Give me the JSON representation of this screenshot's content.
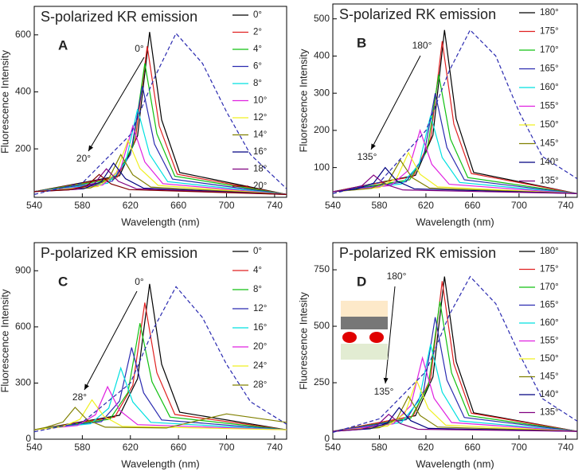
{
  "chart_data": [
    {
      "type": "line",
      "title": "S-polarized KR emission",
      "label": "A",
      "x_label": "Wavelength (nm)",
      "y_label": "Fluorescence Intensity",
      "xlim": [
        540,
        750
      ],
      "xticks": [
        540,
        580,
        620,
        660,
        700,
        740
      ],
      "ylim": [
        30,
        700
      ],
      "yticks": [
        200,
        400,
        600
      ],
      "annotations": [
        "0°",
        "20°"
      ],
      "series": [
        {
          "name": "0°",
          "color": "#000000",
          "x": [
            540,
            611,
            626,
            636,
            646,
            661,
            750
          ],
          "values": [
            50,
            106,
            246,
            610,
            302,
            117,
            40
          ]
        },
        {
          "name": "2°",
          "color": "#e02020",
          "x": [
            540,
            609,
            624,
            634,
            644,
            659,
            750
          ],
          "values": [
            50,
            101,
            229,
            560,
            280,
            111,
            40
          ]
        },
        {
          "name": "4°",
          "color": "#10c010",
          "x": [
            540,
            607,
            622,
            632,
            642,
            657,
            750
          ],
          "values": [
            50,
            95,
            208,
            500,
            253,
            104,
            40
          ]
        },
        {
          "name": "6°",
          "color": "#2a2ab0",
          "x": [
            540,
            605,
            620,
            630,
            640,
            655,
            750
          ],
          "values": [
            50,
            87,
            180,
            420,
            217,
            94,
            40
          ]
        },
        {
          "name": "8°",
          "color": "#00e0e0",
          "x": [
            540,
            601,
            616,
            626,
            636,
            651,
            750
          ],
          "values": [
            50,
            79,
            152,
            340,
            181,
            85,
            40
          ]
        },
        {
          "name": "10°",
          "color": "#e020e0",
          "x": [
            540,
            597,
            612,
            622,
            632,
            647,
            750
          ],
          "values": [
            50,
            73,
            131,
            280,
            154,
            78,
            40
          ]
        },
        {
          "name": "12°",
          "color": "#f0f020",
          "x": [
            540,
            593,
            608,
            618,
            628,
            643,
            750
          ],
          "values": [
            50,
            68,
            113,
            230,
            131,
            72,
            40
          ]
        },
        {
          "name": "14°",
          "color": "#808000",
          "x": [
            540,
            587,
            602,
            612,
            622,
            637,
            750
          ],
          "values": [
            50,
            63,
            96,
            180,
            109,
            66,
            40
          ]
        },
        {
          "name": "16°",
          "color": "#000080",
          "x": [
            540,
            581,
            596,
            606,
            616,
            631,
            750
          ],
          "values": [
            50,
            60,
            85,
            150,
            95,
            62,
            40
          ]
        },
        {
          "name": "18°",
          "color": "#800080",
          "x": [
            540,
            575,
            590,
            600,
            610,
            625,
            750
          ],
          "values": [
            50,
            58,
            78,
            130,
            86,
            60,
            40
          ]
        },
        {
          "name": "20°",
          "color": "#800000",
          "x": [
            540,
            569,
            584,
            594,
            604,
            619,
            750
          ],
          "values": [
            50,
            56,
            71,
            110,
            77,
            57,
            40
          ]
        },
        {
          "color": "#2a2ab0",
          "dashed": true,
          "x": [
            540,
            580,
            620,
            640,
            658,
            680,
            700,
            720,
            750
          ],
          "values": [
            40,
            80,
            250,
            450,
            605,
            500,
            330,
            180,
            60
          ]
        }
      ]
    },
    {
      "type": "line",
      "title": "S-polarized RK emission",
      "label": "B",
      "x_label": "Wavelength (nm)",
      "y_label": "Fluorescence Intensity",
      "xlim": [
        540,
        750
      ],
      "xticks": [
        540,
        580,
        620,
        660,
        700,
        740
      ],
      "ylim": [
        20,
        540
      ],
      "yticks": [
        100,
        200,
        300,
        400,
        500
      ],
      "annotations": [
        "180°",
        "135°"
      ],
      "series": [
        {
          "name": "180°",
          "color": "#000000",
          "x": [
            540,
            611,
            626,
            636,
            646,
            661,
            750
          ],
          "values": [
            35,
            79,
            187,
            470,
            231,
            87,
            30
          ]
        },
        {
          "name": "175°",
          "color": "#e02020",
          "x": [
            540,
            609,
            624,
            634,
            644,
            659,
            750
          ],
          "values": [
            35,
            76,
            177,
            440,
            217,
            84,
            30
          ]
        },
        {
          "name": "170°",
          "color": "#10c010",
          "x": [
            540,
            606,
            621,
            631,
            641,
            656,
            750
          ],
          "values": [
            35,
            67,
            145,
            350,
            177,
            73,
            30
          ]
        },
        {
          "name": "165°",
          "color": "#2a2ab0",
          "x": [
            540,
            603,
            618,
            628,
            638,
            653,
            750
          ],
          "values": [
            35,
            62,
            128,
            300,
            154,
            67,
            30
          ]
        },
        {
          "name": "160°",
          "color": "#00e0e0",
          "x": [
            540,
            599,
            614,
            624,
            634,
            649,
            750
          ],
          "values": [
            35,
            56,
            107,
            240,
            127,
            60,
            30
          ]
        },
        {
          "name": "155°",
          "color": "#e020e0",
          "x": [
            540,
            590,
            605,
            615,
            625,
            640,
            750
          ],
          "values": [
            35,
            52,
            93,
            200,
            109,
            55,
            30
          ]
        },
        {
          "name": "150°",
          "color": "#f0f020",
          "x": [
            540,
            580,
            595,
            605,
            615,
            630,
            750
          ],
          "values": [
            35,
            46,
            72,
            140,
            82,
            48,
            30
          ]
        },
        {
          "name": "145°",
          "color": "#808000",
          "x": [
            540,
            573,
            588,
            598,
            608,
            623,
            750
          ],
          "values": [
            35,
            44,
            65,
            120,
            73,
            45,
            30
          ]
        },
        {
          "name": "140°",
          "color": "#000080",
          "x": [
            540,
            560,
            575,
            585,
            595,
            610,
            750
          ],
          "values": [
            35,
            42,
            58,
            100,
            64,
            43,
            30
          ]
        },
        {
          "name": "135°",
          "color": "#800080",
          "x": [
            540,
            550,
            565,
            575,
            585,
            600,
            750
          ],
          "values": [
            35,
            40,
            51,
            80,
            55,
            40,
            30
          ]
        },
        {
          "color": "#2a2ab0",
          "dashed": true,
          "x": [
            540,
            580,
            620,
            640,
            658,
            680,
            700,
            720,
            750
          ],
          "values": [
            30,
            60,
            200,
            360,
            470,
            400,
            250,
            130,
            70
          ]
        }
      ]
    },
    {
      "type": "line",
      "title": "P-polarized KR emission",
      "label": "C",
      "x_label": "Wavelength (nm)",
      "y_label": "Fluorescence Intensity",
      "xlim": [
        540,
        750
      ],
      "xticks": [
        540,
        580,
        620,
        660,
        700,
        740
      ],
      "ylim": [
        0,
        1050
      ],
      "yticks": [
        0,
        300,
        600,
        900
      ],
      "annotations": [
        "0°",
        "28°"
      ],
      "series": [
        {
          "name": "0°",
          "color": "#000000",
          "x": [
            540,
            611,
            626,
            636,
            646,
            661,
            750
          ],
          "values": [
            50,
            128,
            323,
            830,
            401,
            144,
            50
          ]
        },
        {
          "name": "4°",
          "color": "#e02020",
          "x": [
            540,
            607,
            622,
            632,
            642,
            657,
            750
          ],
          "values": [
            50,
            118,
            288,
            730,
            356,
            132,
            50
          ]
        },
        {
          "name": "8°",
          "color": "#10c010",
          "x": [
            540,
            603,
            618,
            628,
            638,
            653,
            750
          ],
          "values": [
            50,
            107,
            250,
            620,
            307,
            118,
            50
          ]
        },
        {
          "name": "12°",
          "color": "#2a2ab0",
          "x": [
            540,
            596,
            611,
            621,
            631,
            646,
            750
          ],
          "values": [
            50,
            94,
            204,
            490,
            248,
            103,
            50
          ]
        },
        {
          "name": "16°",
          "color": "#00e0e0",
          "x": [
            540,
            587,
            602,
            612,
            622,
            637,
            750
          ],
          "values": [
            50,
            83,
            166,
            380,
            199,
            90,
            50
          ]
        },
        {
          "name": "20°",
          "color": "#e020e0",
          "x": [
            540,
            576,
            591,
            601,
            611,
            626,
            750
          ],
          "values": [
            50,
            73,
            131,
            280,
            154,
            78,
            50
          ]
        },
        {
          "name": "24°",
          "color": "#f0f020",
          "x": [
            540,
            563,
            578,
            588,
            598,
            613,
            750
          ],
          "values": [
            50,
            66,
            106,
            210,
            122,
            69,
            50
          ]
        },
        {
          "name": "28°",
          "color": "#808000",
          "x": [
            540,
            549,
            564,
            574,
            584,
            599,
            650,
            700,
            750
          ],
          "values": [
            50,
            62,
            92,
            170,
            104,
            64,
            60,
            135,
            90
          ]
        },
        {
          "color": "#2a2ab0",
          "dashed": true,
          "x": [
            540,
            580,
            620,
            640,
            658,
            680,
            700,
            720,
            750
          ],
          "values": [
            40,
            90,
            300,
            600,
            815,
            650,
            400,
            200,
            80
          ]
        }
      ]
    },
    {
      "type": "line",
      "title": "P-polarized RK emission",
      "label": "D",
      "x_label": "Wavelength (nm)",
      "y_label": "Fluorescence Intesity",
      "xlim": [
        540,
        750
      ],
      "xticks": [
        540,
        580,
        620,
        660,
        700,
        740
      ],
      "ylim": [
        0,
        870
      ],
      "yticks": [
        0,
        250,
        500,
        750
      ],
      "annotations": [
        "180°",
        "135°"
      ],
      "series": [
        {
          "name": "180°",
          "color": "#000000",
          "x": [
            540,
            611,
            626,
            636,
            646,
            661,
            750
          ],
          "values": [
            35,
            104,
            275,
            720,
            343,
            117,
            35
          ]
        },
        {
          "name": "175°",
          "color": "#e02020",
          "x": [
            540,
            609,
            624,
            634,
            644,
            659,
            750
          ],
          "values": [
            35,
            102,
            268,
            700,
            334,
            115,
            35
          ]
        },
        {
          "name": "170°",
          "color": "#10c010",
          "x": [
            540,
            607,
            622,
            632,
            642,
            657,
            750
          ],
          "values": [
            35,
            93,
            236,
            610,
            294,
            104,
            35
          ]
        },
        {
          "name": "165°",
          "color": "#2a2ab0",
          "x": [
            540,
            603,
            618,
            628,
            638,
            653,
            750
          ],
          "values": [
            35,
            86,
            212,
            540,
            262,
            96,
            35
          ]
        },
        {
          "name": "160°",
          "color": "#00e0e0",
          "x": [
            540,
            599,
            614,
            624,
            634,
            649,
            750
          ],
          "values": [
            35,
            74,
            170,
            420,
            208,
            81,
            35
          ]
        },
        {
          "name": "155°",
          "color": "#e020e0",
          "x": [
            540,
            592,
            607,
            617,
            627,
            642,
            750
          ],
          "values": [
            35,
            68,
            149,
            360,
            181,
            74,
            35
          ]
        },
        {
          "name": "150°",
          "color": "#f0f020",
          "x": [
            540,
            587,
            602,
            612,
            622,
            637,
            750
          ],
          "values": [
            35,
            58,
            114,
            260,
            136,
            62,
            35
          ]
        },
        {
          "name": "145°",
          "color": "#808000",
          "x": [
            540,
            580,
            595,
            605,
            615,
            630,
            750
          ],
          "values": [
            35,
            51,
            89,
            190,
            105,
            54,
            35
          ]
        },
        {
          "name": "140°",
          "color": "#000080",
          "x": [
            540,
            572,
            587,
            597,
            607,
            622,
            750
          ],
          "values": [
            35,
            46,
            72,
            140,
            82,
            48,
            35
          ]
        },
        {
          "name": "135°",
          "color": "#800080",
          "x": [
            540,
            563,
            578,
            588,
            598,
            613,
            750
          ],
          "values": [
            35,
            43,
            61,
            110,
            69,
            44,
            35
          ]
        },
        {
          "color": "#2a2ab0",
          "dashed": true,
          "x": [
            540,
            580,
            620,
            640,
            658,
            680,
            700,
            720,
            750
          ],
          "values": [
            30,
            90,
            300,
            550,
            720,
            600,
            380,
            180,
            80
          ]
        }
      ]
    }
  ]
}
